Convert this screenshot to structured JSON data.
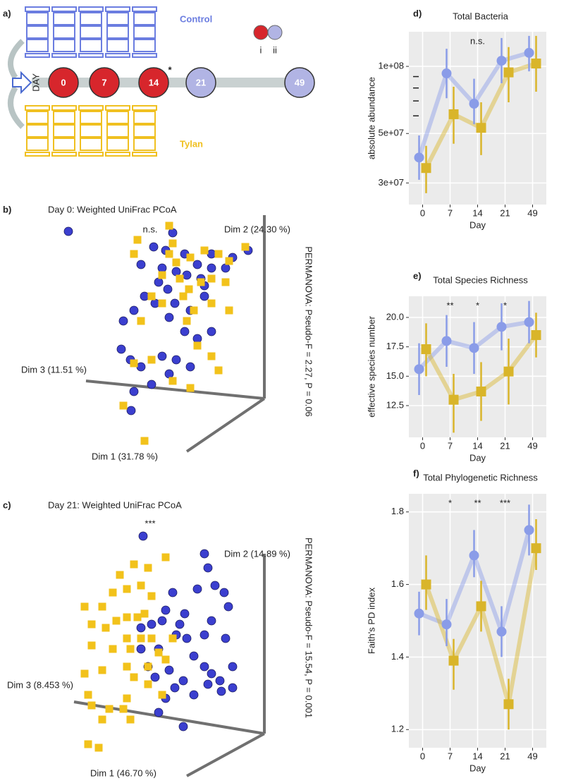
{
  "chart_data": [
    {
      "type": "timeline",
      "panel": "a)",
      "groups": [
        "Control",
        "Tylan"
      ],
      "axis_label": "DAY",
      "days": [
        "0",
        "7",
        "14",
        "21",
        "49"
      ],
      "marker": "*",
      "legend": [
        "i",
        "ii"
      ]
    },
    {
      "type": "scatter3d",
      "panel": "b)",
      "title": "Day 0: Weighted UniFrac PCoA",
      "annotation": "n.s.",
      "axis_labels": {
        "dim1": "Dim 1 (31.78 %)",
        "dim2": "Dim 2 (24.30 %)",
        "dim3": "Dim 3 (11.51 %)"
      },
      "stat": "PERMANOVA: Pseudo-F = 2.27, P = 0.06",
      "xlim": [
        0,
        400
      ],
      "ylim": [
        0,
        400
      ],
      "series": [
        {
          "color": "#3b3fcf",
          "marker": "circle",
          "x": [
            37,
            185,
            158,
            140,
            170,
            190,
            205,
            220,
            240,
            260,
            292,
            270,
            225,
            202,
            178,
            165,
            188,
            210,
            230,
            240,
            220,
            202,
            180,
            160,
            145,
            130,
            115,
            112,
            125,
            140,
            170,
            190,
            210,
            180,
            155,
            130,
            126,
            175,
            230,
            240
          ],
          "y": [
            372,
            370,
            350,
            325,
            320,
            315,
            310,
            325,
            340,
            320,
            345,
            335,
            305,
            340,
            290,
            300,
            270,
            260,
            280,
            230,
            220,
            230,
            250,
            270,
            280,
            260,
            245,
            205,
            190,
            180,
            195,
            190,
            180,
            170,
            155,
            145,
            118,
            345,
            295,
            320
          ]
        },
        {
          "color": "#f2c21b",
          "marker": "square",
          "x": [
            180,
            135,
            185,
            130,
            230,
            210,
            190,
            180,
            195,
            170,
            140,
            155,
            208,
            225,
            240,
            260,
            265,
            288,
            265,
            250,
            215,
            205,
            220,
            240,
            250,
            210,
            185,
            155,
            130,
            115,
            145,
            170,
            200,
            240
          ],
          "y": [
            380,
            360,
            355,
            340,
            345,
            335,
            328,
            340,
            305,
            270,
            245,
            280,
            290,
            300,
            305,
            300,
            260,
            350,
            330,
            340,
            260,
            245,
            210,
            195,
            175,
            150,
            160,
            190,
            185,
            125,
            75,
            310,
            280,
            270
          ]
        }
      ]
    },
    {
      "type": "scatter3d",
      "panel": "c)",
      "title": "Day 21: Weighted UniFrac PCoA",
      "annotation": "***",
      "axis_labels": {
        "dim1": "Dim 1 (46.70 %)",
        "dim2": "Dim 2 (14.89 %)",
        "dim3": "Dim 3 (8.453 %)"
      },
      "stat": "PERMANOVA: Pseudo-F = 15.54, P = 0.001",
      "xlim": [
        0,
        400
      ],
      "ylim": [
        0,
        400
      ],
      "series": [
        {
          "color": "#3b3fcf",
          "marker": "circle",
          "x": [
            143,
            230,
            235,
            220,
            245,
            258,
            264,
            240,
            230,
            202,
            185,
            175,
            155,
            140,
            190,
            205,
            215,
            230,
            240,
            252,
            270,
            270,
            254,
            235,
            215,
            200,
            188,
            180,
            165,
            140,
            150,
            160,
            175,
            165,
            200,
            170,
            195,
            260
          ],
          "y": [
            355,
            330,
            310,
            280,
            285,
            275,
            255,
            235,
            215,
            245,
            275,
            250,
            230,
            225,
            215,
            210,
            185,
            170,
            160,
            150,
            170,
            140,
            135,
            145,
            130,
            150,
            140,
            165,
            195,
            195,
            170,
            155,
            125,
            105,
            85,
            235,
            230,
            210
          ]
        },
        {
          "color": "#f2c21b",
          "marker": "square",
          "x": [
            175,
            150,
            130,
            110,
            100,
            120,
            140,
            155,
            60,
            85,
            105,
            120,
            135,
            145,
            70,
            90,
            120,
            140,
            155,
            185,
            70,
            100,
            125,
            165,
            120,
            85,
            60,
            130,
            150,
            170,
            65,
            120,
            70,
            95,
            85,
            125,
            65,
            80,
            115,
            150,
            175
          ],
          "y": [
            325,
            310,
            315,
            300,
            275,
            280,
            285,
            270,
            255,
            255,
            235,
            240,
            240,
            245,
            230,
            225,
            210,
            210,
            210,
            210,
            200,
            195,
            195,
            190,
            170,
            165,
            160,
            155,
            145,
            130,
            130,
            125,
            115,
            110,
            95,
            95,
            60,
            55,
            110,
            170,
            180
          ]
        }
      ]
    },
    {
      "type": "line",
      "panel": "d)",
      "title": "Total Bacteria",
      "xlabel": "Day",
      "ylabel": "absolute abundance",
      "categories": [
        "0",
        "7",
        "14",
        "21",
        "49"
      ],
      "log_y": true,
      "grid": true,
      "ylim": [
        24000000,
        143000000
      ],
      "yticks": [
        {
          "value": 30000000,
          "label": "3e+07"
        },
        {
          "value": 50000000,
          "label": "5e+07"
        },
        {
          "value": 100000000,
          "label": "1e+08"
        }
      ],
      "yminorticks": [
        60000000,
        70000000,
        80000000,
        90000000
      ],
      "annotations": [
        null,
        null,
        "n.s.",
        null,
        null
      ],
      "series": [
        {
          "color": "#8a9ce8",
          "marker": "circle",
          "values": [
            39000000,
            93000000,
            68000000,
            106000000,
            115000000
          ],
          "low": [
            31000000,
            72000000,
            55000000,
            84000000,
            95000000
          ],
          "high": [
            49000000,
            120000000,
            88000000,
            134000000,
            137000000
          ]
        },
        {
          "color": "#d9b52a",
          "marker": "square",
          "values": [
            35000000,
            61000000,
            53000000,
            94000000,
            103000000
          ],
          "low": [
            27000000,
            45000000,
            40000000,
            69000000,
            77000000
          ],
          "high": [
            44000000,
            81000000,
            69000000,
            122000000,
            137000000
          ]
        }
      ]
    },
    {
      "type": "line",
      "panel": "e)",
      "title": "Total Species Richness",
      "xlabel": "Day",
      "ylabel": "effective species number",
      "categories": [
        "0",
        "7",
        "14",
        "21",
        "49"
      ],
      "grid": true,
      "ylim": [
        9.8,
        21.8
      ],
      "yticks": [
        12.5,
        {
          "value": 15,
          "label": "15.0"
        },
        17.5,
        {
          "value": 20,
          "label": "20.0"
        }
      ],
      "annotations": [
        null,
        "**",
        "*",
        "*",
        null
      ],
      "series": [
        {
          "color": "#8a9ce8",
          "marker": "circle",
          "values": [
            15.6,
            18.0,
            17.4,
            19.2,
            19.6
          ],
          "low": [
            13.4,
            15.8,
            15.2,
            17.2,
            17.8
          ],
          "high": [
            17.8,
            20.2,
            19.6,
            21.2,
            21.4
          ]
        },
        {
          "color": "#d9b52a",
          "marker": "square",
          "values": [
            17.3,
            13.0,
            13.7,
            15.4,
            18.5
          ],
          "low": [
            15.0,
            10.2,
            11.2,
            12.6,
            16.6
          ],
          "high": [
            19.5,
            15.2,
            16.2,
            18.2,
            20.4
          ]
        }
      ]
    },
    {
      "type": "line",
      "panel": "f)",
      "title": "Total Phylogenetic Richness",
      "xlabel": "Day",
      "ylabel": "Faith's PD index",
      "categories": [
        "0",
        "7",
        "14",
        "21",
        "49"
      ],
      "grid": true,
      "ylim": [
        1.15,
        1.85
      ],
      "yticks": [
        1.2,
        1.4,
        1.6,
        1.8
      ],
      "annotations": [
        null,
        "*",
        "**",
        "***",
        null
      ],
      "series": [
        {
          "color": "#8a9ce8",
          "marker": "circle",
          "values": [
            1.52,
            1.49,
            1.68,
            1.47,
            1.75
          ],
          "low": [
            1.46,
            1.43,
            1.62,
            1.4,
            1.68
          ],
          "high": [
            1.58,
            1.56,
            1.75,
            1.54,
            1.82
          ]
        },
        {
          "color": "#d9b52a",
          "marker": "square",
          "values": [
            1.6,
            1.39,
            1.54,
            1.27,
            1.7
          ],
          "low": [
            1.53,
            1.31,
            1.47,
            1.2,
            1.64
          ],
          "high": [
            1.68,
            1.45,
            1.61,
            1.34,
            1.78
          ]
        }
      ]
    }
  ]
}
